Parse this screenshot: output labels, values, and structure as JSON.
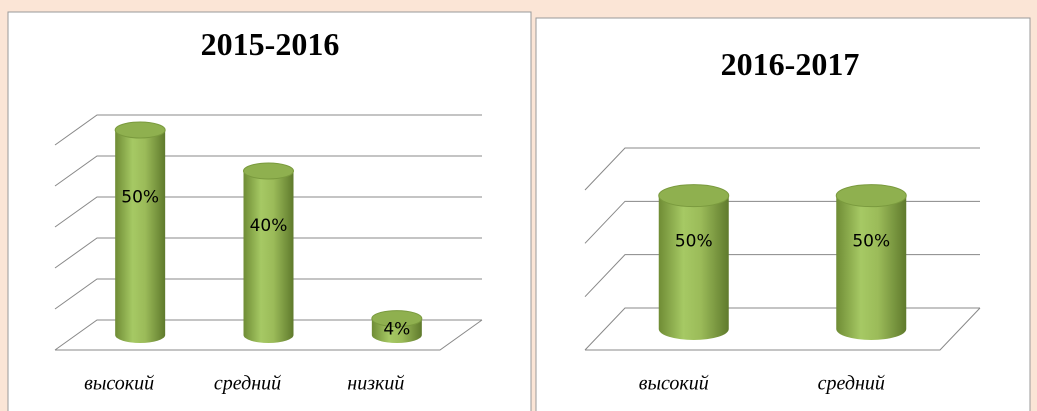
{
  "chart_data": [
    {
      "type": "bar3d",
      "title": "2015-2016",
      "categories": [
        "высокий",
        "средний",
        "низкий"
      ],
      "values": [
        50,
        40,
        4
      ],
      "value_labels": [
        "50%",
        "40%",
        "4%"
      ],
      "color": "#9bbb59",
      "ylim": [
        0,
        50
      ],
      "yticks": [
        0,
        10,
        20,
        30,
        40,
        50
      ],
      "grid": true
    },
    {
      "type": "bar3d",
      "title": "2016-2017",
      "categories": [
        "высокий",
        "средний"
      ],
      "values": [
        50,
        50
      ],
      "value_labels": [
        "50%",
        "50%"
      ],
      "color": "#9bbb59",
      "ylim": [
        0,
        60
      ],
      "yticks": [
        0,
        20,
        40,
        60
      ],
      "grid": true
    }
  ]
}
